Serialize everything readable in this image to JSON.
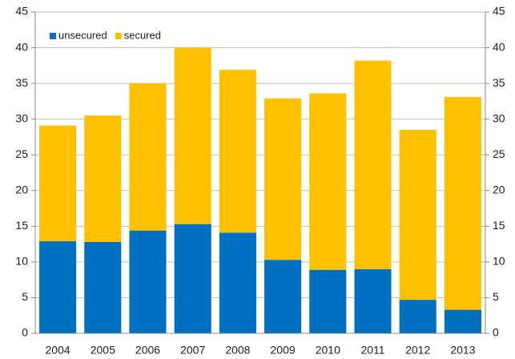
{
  "chart_data": {
    "type": "bar",
    "stacked": true,
    "categories": [
      "2004",
      "2005",
      "2006",
      "2007",
      "2008",
      "2009",
      "2010",
      "2011",
      "2012",
      "2013"
    ],
    "series": [
      {
        "name": "unsecured",
        "color": "#0070c0",
        "values": [
          12.9,
          12.8,
          14.4,
          15.3,
          14.1,
          10.3,
          8.9,
          9.0,
          4.7,
          3.3
        ]
      },
      {
        "name": "secured",
        "color": "#ffc000",
        "values": [
          16.2,
          17.7,
          20.6,
          24.7,
          22.8,
          22.6,
          24.7,
          29.2,
          23.8,
          29.8
        ]
      }
    ],
    "ylim": [
      0,
      45
    ],
    "yticks": [
      0,
      5,
      10,
      15,
      20,
      25,
      30,
      35,
      40,
      45
    ],
    "y2lim": [
      0,
      45
    ],
    "y2ticks": [
      0,
      5,
      10,
      15,
      20,
      25,
      30,
      35,
      40,
      45
    ],
    "grid": true,
    "legend": "top-left"
  }
}
